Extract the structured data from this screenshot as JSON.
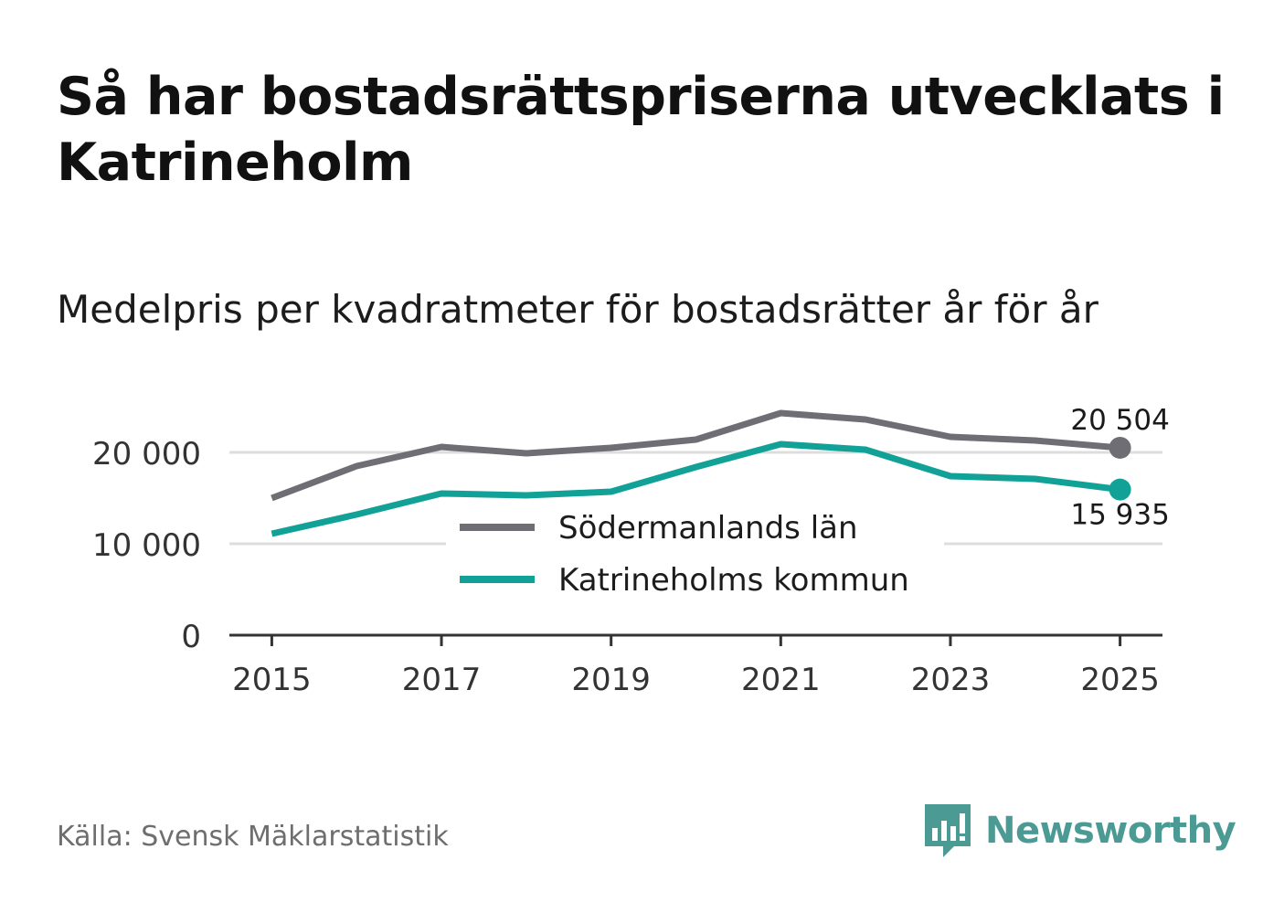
{
  "title": "Så har bostadsrättspriserna utvecklats i Katrineholm",
  "subtitle": "Medelpris per kvadratmeter för bostadsrätter år för år",
  "source": "Källa: Svensk Mäklarstatistik",
  "brand": "Newsworthy",
  "colors": {
    "series1": "#6f6e74",
    "series2": "#12a197",
    "grid": "#dddddd",
    "axis": "#333333",
    "brand": "#4b9a94"
  },
  "chart_data": {
    "type": "line",
    "title": "Medelpris per kvadratmeter för bostadsrätter år för år",
    "xlabel": "",
    "ylabel": "",
    "x": [
      2015,
      2016,
      2017,
      2018,
      2019,
      2020,
      2021,
      2022,
      2023,
      2024,
      2025
    ],
    "xticks": [
      2015,
      2017,
      2019,
      2021,
      2023,
      2025
    ],
    "xtick_labels": [
      "2015",
      "2017",
      "2019",
      "2021",
      "2023",
      "2025"
    ],
    "xlim": [
      2014.5,
      2025.5
    ],
    "ylim": [
      0,
      25000
    ],
    "yticks": [
      0,
      10000,
      20000
    ],
    "ytick_labels": [
      "0",
      "10 000",
      "20 000"
    ],
    "grid": true,
    "legend_position": "center",
    "series": [
      {
        "name": "Södermanlands län",
        "color": "#6f6e74",
        "values": [
          15000,
          18500,
          20600,
          19900,
          20500,
          21400,
          24300,
          23600,
          21700,
          21300,
          20504
        ],
        "end_label": "20 504"
      },
      {
        "name": "Katrineholms kommun",
        "color": "#12a197",
        "values": [
          11100,
          13200,
          15500,
          15300,
          15700,
          18400,
          20900,
          20300,
          17400,
          17100,
          15935
        ],
        "end_label": "15 935"
      }
    ]
  }
}
